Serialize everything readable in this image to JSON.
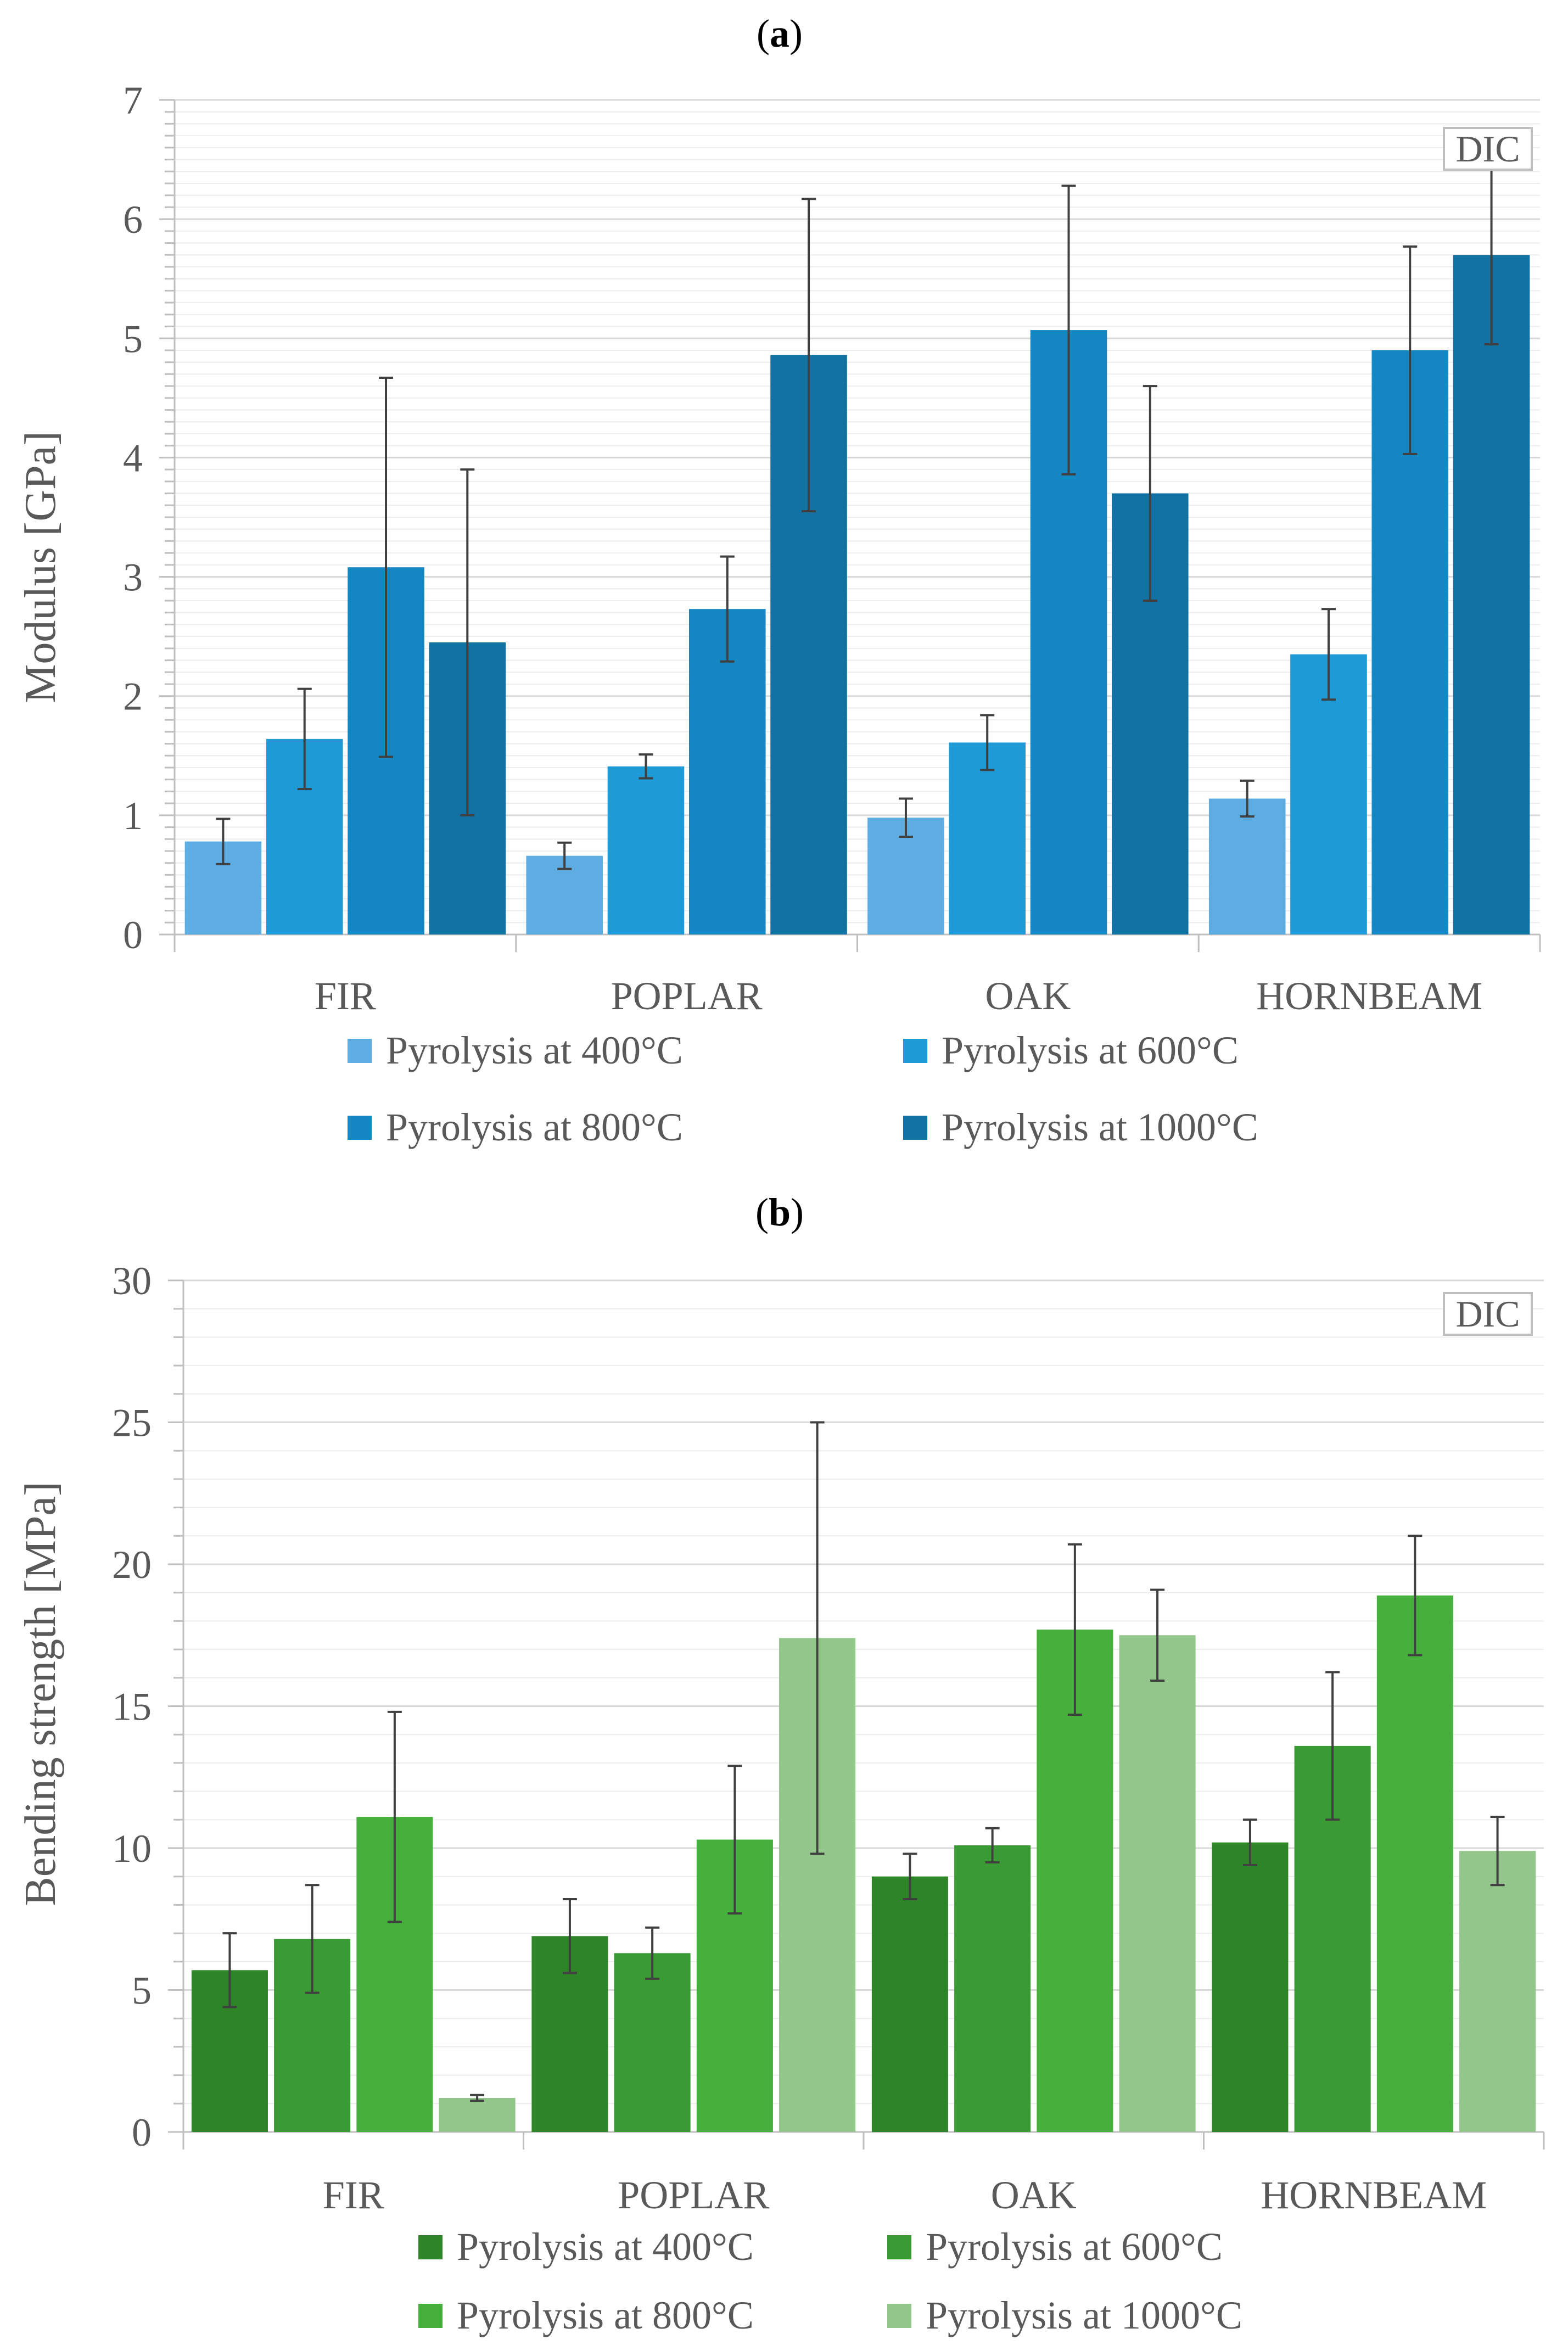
{
  "chart_data": [
    {
      "type": "bar",
      "panel_label": {
        "open": "(",
        "letter": "a",
        "close": ")"
      },
      "title": "",
      "ylabel": "Modulus [GPa]",
      "xlabel": "",
      "ylim": [
        0,
        7
      ],
      "yticks": [
        "0",
        "1",
        "2",
        "3",
        "4",
        "5",
        "6",
        "7"
      ],
      "grid": true,
      "annotation": "DIC",
      "categories": [
        "FIR",
        "POPLAR",
        "OAK",
        "HORNBEAM"
      ],
      "series": [
        {
          "name": "Pyrolysis at 400°C",
          "color": "#5DADE2",
          "values": [
            0.78,
            0.66,
            0.98,
            1.14
          ],
          "error": [
            0.19,
            0.11,
            0.16,
            0.15
          ]
        },
        {
          "name": "Pyrolysis at 600°C",
          "color": "#1E9AD6",
          "values": [
            1.64,
            1.41,
            1.61,
            2.35
          ],
          "error": [
            0.42,
            0.1,
            0.23,
            0.38
          ]
        },
        {
          "name": "Pyrolysis at 800°C",
          "color": "#1587C2",
          "values": [
            3.08,
            2.73,
            5.07,
            4.9
          ],
          "error": [
            1.59,
            0.44,
            1.21,
            0.87
          ]
        },
        {
          "name": "Pyrolysis at 1000°C",
          "color": "#1372A4",
          "values": [
            2.45,
            4.86,
            3.7,
            5.7
          ],
          "error": [
            1.45,
            1.31,
            0.9,
            0.75
          ]
        }
      ]
    },
    {
      "type": "bar",
      "panel_label": {
        "open": "(",
        "letter": "b",
        "close": ")"
      },
      "title": "",
      "ylabel": "Bending strength [MPa]",
      "xlabel": "",
      "ylim": [
        0,
        30
      ],
      "yticks": [
        "0",
        "5",
        "10",
        "15",
        "20",
        "25",
        "30"
      ],
      "grid": true,
      "annotation": "DIC",
      "categories": [
        "FIR",
        "POPLAR",
        "OAK",
        "HORNBEAM"
      ],
      "series": [
        {
          "name": "Pyrolysis at 400°C",
          "color": "#2E8528",
          "values": [
            5.7,
            6.9,
            9.0,
            10.2
          ],
          "error": [
            1.3,
            1.3,
            0.8,
            0.8
          ]
        },
        {
          "name": "Pyrolysis at 600°C",
          "color": "#3A9A33",
          "values": [
            6.8,
            6.3,
            10.1,
            13.6
          ],
          "error": [
            1.9,
            0.9,
            0.6,
            2.6
          ]
        },
        {
          "name": "Pyrolysis at 800°C",
          "color": "#45B03C",
          "values": [
            11.1,
            10.3,
            17.7,
            18.9
          ],
          "error": [
            3.7,
            2.6,
            3.0,
            2.1
          ]
        },
        {
          "name": "Pyrolysis at 1000°C",
          "color": "#93C68B",
          "values": [
            1.2,
            17.4,
            17.5,
            9.9
          ],
          "error": [
            0.1,
            7.6,
            1.6,
            1.2
          ]
        }
      ]
    }
  ]
}
